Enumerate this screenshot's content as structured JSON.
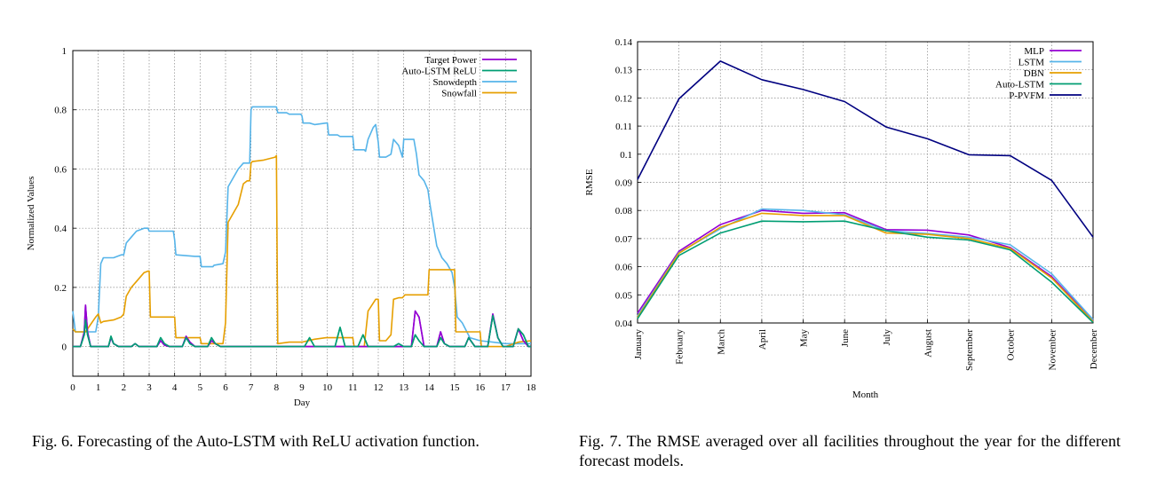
{
  "captions": {
    "fig6": "Fig. 6.  Forecasting of the Auto-LSTM with ReLU activation function.",
    "fig7": "Fig. 7.  The RMSE averaged over all facilities throughout the year for the different forecast models."
  },
  "colors": {
    "purple": "#9400d3",
    "green": "#009e73",
    "lightblue": "#56b4e9",
    "orange": "#e69f00",
    "navy": "#000080"
  },
  "chart_data": [
    {
      "type": "line",
      "title": "",
      "xlabel": "Day",
      "ylabel": "Normalized Values",
      "xlim": [
        0,
        18
      ],
      "ylim": [
        -0.1,
        1
      ],
      "xticks": [
        "0",
        "1",
        "2",
        "3",
        "4",
        "5",
        "6",
        "7",
        "8",
        "9",
        "10",
        "11",
        "12",
        "13",
        "14",
        "15",
        "16",
        "17",
        "18"
      ],
      "yticks": [
        "0",
        "0.2",
        "0.4",
        "0.6",
        "0.8",
        "1"
      ],
      "grid": true,
      "legend_position": "top-right",
      "series": [
        {
          "name": "Target Power",
          "color": "#9400d3",
          "x": [
            0,
            0.3,
            0.45,
            0.5,
            0.58,
            0.7,
            1,
            1.4,
            1.5,
            1.6,
            1.8,
            2.3,
            2.45,
            2.6,
            2.8,
            3.3,
            3.45,
            3.6,
            3.8,
            4.3,
            4.45,
            4.6,
            4.8,
            5.3,
            5.45,
            5.6,
            5.8,
            6,
            7,
            8,
            9,
            10,
            11,
            12,
            12.8,
            13.3,
            13.45,
            13.6,
            13.8,
            14.3,
            14.45,
            14.6,
            14.8,
            15.4,
            15.55,
            15.8,
            16.3,
            16.5,
            16.7,
            16.9,
            17.3,
            17.5,
            17.7,
            17.9,
            18
          ],
          "y": [
            0,
            0,
            0.05,
            0.14,
            0.05,
            0,
            0,
            0,
            0.03,
            0.01,
            0,
            0,
            0.01,
            0,
            0,
            0,
            0.02,
            0.005,
            0,
            0,
            0.035,
            0.015,
            0,
            0,
            0.02,
            0.01,
            0,
            0,
            0,
            0,
            0,
            0,
            0,
            0,
            0,
            0,
            0.12,
            0.1,
            0,
            0,
            0.05,
            0.01,
            0,
            0,
            0.03,
            0,
            0,
            0.11,
            0.03,
            0,
            0,
            0.06,
            0.02,
            0,
            0
          ]
        },
        {
          "name": "Auto-LSTM ReLU",
          "color": "#009e73",
          "x": [
            0,
            0.3,
            0.45,
            0.5,
            0.58,
            0.7,
            1,
            1.4,
            1.5,
            1.6,
            1.8,
            2.3,
            2.45,
            2.6,
            2.8,
            3.3,
            3.45,
            3.6,
            3.8,
            4.3,
            4.45,
            4.6,
            4.8,
            5.3,
            5.45,
            5.6,
            5.8,
            6,
            9.1,
            9.3,
            9.5,
            10.3,
            10.5,
            10.7,
            11.0,
            11.2,
            11.4,
            11.6,
            12.6,
            12.8,
            13.0,
            13.3,
            13.45,
            13.6,
            13.8,
            14.3,
            14.45,
            14.6,
            14.8,
            15.4,
            15.55,
            15.8,
            16.3,
            16.5,
            16.7,
            16.9,
            17.3,
            17.5,
            17.7,
            17.9,
            18
          ],
          "y": [
            0,
            0,
            0.04,
            0.09,
            0.04,
            0,
            0,
            0,
            0.035,
            0.01,
            0,
            0,
            0.01,
            0,
            0,
            0,
            0.03,
            0.01,
            0,
            0,
            0.03,
            0.01,
            0,
            0,
            0.03,
            0.01,
            0,
            0,
            0,
            0.03,
            0,
            0,
            0.065,
            0,
            0,
            0,
            0.04,
            0,
            0,
            0.01,
            0,
            0,
            0.04,
            0.02,
            0,
            0,
            0.03,
            0.01,
            0,
            0,
            0.03,
            0,
            0,
            0.105,
            0.03,
            0,
            0,
            0.06,
            0.04,
            0,
            0
          ]
        },
        {
          "name": "Snowdepth",
          "color": "#56b4e9",
          "x": [
            0,
            0.1,
            0.9,
            1.0,
            1.1,
            1.2,
            1.6,
            1.9,
            2.0,
            2.1,
            2.3,
            2.5,
            2.8,
            2.95,
            3.0,
            3.05,
            3.2,
            3.6,
            3.95,
            4.0,
            4.05,
            4.8,
            4.95,
            5.0,
            5.05,
            5.45,
            5.5,
            5.55,
            5.9,
            6.0,
            6.1,
            6.3,
            6.5,
            6.7,
            6.85,
            6.95,
            7.0,
            7.05,
            7.5,
            7.95,
            8.0,
            8.05,
            8.4,
            8.5,
            8.8,
            8.95,
            9.0,
            9.05,
            9.3,
            9.5,
            9.95,
            10.0,
            10.05,
            10.4,
            10.5,
            10.8,
            10.95,
            11.0,
            11.05,
            11.4,
            11.45,
            11.5,
            11.6,
            11.8,
            11.9,
            12.0,
            12.05,
            12.3,
            12.5,
            12.6,
            12.8,
            12.95,
            13.0,
            13.05,
            13.4,
            13.5,
            13.6,
            13.8,
            13.95,
            14.0,
            14.05,
            14.3,
            14.5,
            14.7,
            14.9,
            15.0,
            15.1,
            15.3,
            15.6,
            16.0,
            16.5,
            17.0,
            17.5,
            18.0
          ],
          "y": [
            0.12,
            0.05,
            0.05,
            0.1,
            0.28,
            0.3,
            0.3,
            0.31,
            0.31,
            0.35,
            0.37,
            0.39,
            0.4,
            0.4,
            0.39,
            0.39,
            0.39,
            0.39,
            0.39,
            0.36,
            0.31,
            0.305,
            0.305,
            0.305,
            0.27,
            0.27,
            0.27,
            0.275,
            0.28,
            0.32,
            0.54,
            0.57,
            0.6,
            0.62,
            0.62,
            0.62,
            0.8,
            0.81,
            0.81,
            0.81,
            0.81,
            0.79,
            0.79,
            0.785,
            0.785,
            0.785,
            0.78,
            0.755,
            0.755,
            0.75,
            0.755,
            0.755,
            0.715,
            0.715,
            0.71,
            0.71,
            0.71,
            0.71,
            0.665,
            0.665,
            0.665,
            0.66,
            0.7,
            0.74,
            0.75,
            0.69,
            0.64,
            0.64,
            0.65,
            0.7,
            0.68,
            0.64,
            0.7,
            0.7,
            0.7,
            0.65,
            0.58,
            0.56,
            0.53,
            0.5,
            0.47,
            0.34,
            0.3,
            0.28,
            0.25,
            0.2,
            0.1,
            0.08,
            0.03,
            0.02,
            0.015,
            0.01,
            0.01,
            0.01
          ]
        },
        {
          "name": "Snowfall",
          "color": "#e69f00",
          "x": [
            0,
            0.1,
            0.5,
            0.9,
            1.0,
            1.1,
            1.2,
            1.6,
            1.9,
            2.0,
            2.1,
            2.3,
            2.5,
            2.8,
            2.95,
            3.0,
            3.05,
            3.2,
            3.6,
            3.95,
            4.0,
            4.05,
            4.95,
            5.0,
            5.05,
            5.9,
            6.0,
            6.1,
            6.3,
            6.5,
            6.7,
            6.85,
            6.95,
            7.0,
            7.05,
            7.5,
            7.95,
            8.0,
            8.05,
            8.5,
            9.0,
            9.5,
            9.95,
            10.0,
            10.05,
            10.95,
            11.0,
            11.05,
            11.45,
            11.6,
            11.9,
            12.0,
            12.05,
            12.3,
            12.5,
            12.6,
            12.8,
            12.95,
            13.0,
            13.05,
            13.5,
            13.95,
            14.0,
            14.05,
            14.5,
            14.95,
            15.0,
            15.05,
            15.5,
            15.95,
            16.0,
            16.05,
            16.5,
            17.0,
            17.5,
            18.0
          ],
          "y": [
            0.06,
            0.05,
            0.05,
            0.1,
            0.11,
            0.08,
            0.085,
            0.09,
            0.1,
            0.11,
            0.17,
            0.2,
            0.22,
            0.25,
            0.255,
            0.255,
            0.1,
            0.1,
            0.1,
            0.1,
            0.1,
            0.03,
            0.03,
            0.03,
            0.01,
            0.01,
            0.08,
            0.42,
            0.45,
            0.48,
            0.55,
            0.56,
            0.56,
            0.62,
            0.625,
            0.63,
            0.64,
            0.645,
            0.01,
            0.015,
            0.015,
            0.025,
            0.03,
            0.03,
            0.03,
            0.03,
            0.03,
            0.0,
            0.0,
            0.12,
            0.16,
            0.16,
            0.02,
            0.02,
            0.04,
            0.16,
            0.165,
            0.165,
            0.17,
            0.175,
            0.175,
            0.175,
            0.26,
            0.26,
            0.26,
            0.26,
            0.26,
            0.05,
            0.05,
            0.05,
            0.05,
            0.0,
            0.0,
            0.0,
            0.015,
            0.02
          ]
        }
      ]
    },
    {
      "type": "line",
      "title": "",
      "xlabel": "Month",
      "ylabel": "RMSE",
      "ylim": [
        0.04,
        0.14
      ],
      "yticks": [
        "0.04",
        "0.05",
        "0.06",
        "0.07",
        "0.08",
        "0.09",
        "0.1",
        "0.11",
        "0.12",
        "0.13",
        "0.14"
      ],
      "grid": true,
      "legend_position": "top-right",
      "categories": [
        "January",
        "February",
        "March",
        "April",
        "May",
        "June",
        "July",
        "August",
        "September",
        "October",
        "November",
        "December"
      ],
      "series": [
        {
          "name": "MLP",
          "color": "#9400d3",
          "values": [
            0.0435,
            0.0655,
            0.075,
            0.08,
            0.079,
            0.0792,
            0.0732,
            0.073,
            0.0713,
            0.0668,
            0.0565,
            0.0408
          ]
        },
        {
          "name": "LSTM",
          "color": "#56b4e9",
          "values": [
            0.0425,
            0.065,
            0.0735,
            0.0805,
            0.08,
            0.0785,
            0.0728,
            0.0718,
            0.0705,
            0.0678,
            0.0575,
            0.0412
          ]
        },
        {
          "name": "DBN",
          "color": "#e69f00",
          "values": [
            0.042,
            0.0648,
            0.074,
            0.079,
            0.0782,
            0.0782,
            0.072,
            0.0715,
            0.07,
            0.0665,
            0.056,
            0.0405
          ]
        },
        {
          "name": "Auto-LSTM",
          "color": "#009e73",
          "values": [
            0.0415,
            0.064,
            0.072,
            0.0762,
            0.076,
            0.0762,
            0.0728,
            0.0705,
            0.0695,
            0.066,
            0.0545,
            0.0402
          ]
        },
        {
          "name": "P-PVFM",
          "color": "#000080",
          "values": [
            0.091,
            0.1197,
            0.1331,
            0.1265,
            0.123,
            0.1187,
            0.1097,
            0.1055,
            0.0998,
            0.0995,
            0.0907,
            0.0705
          ]
        }
      ]
    }
  ]
}
